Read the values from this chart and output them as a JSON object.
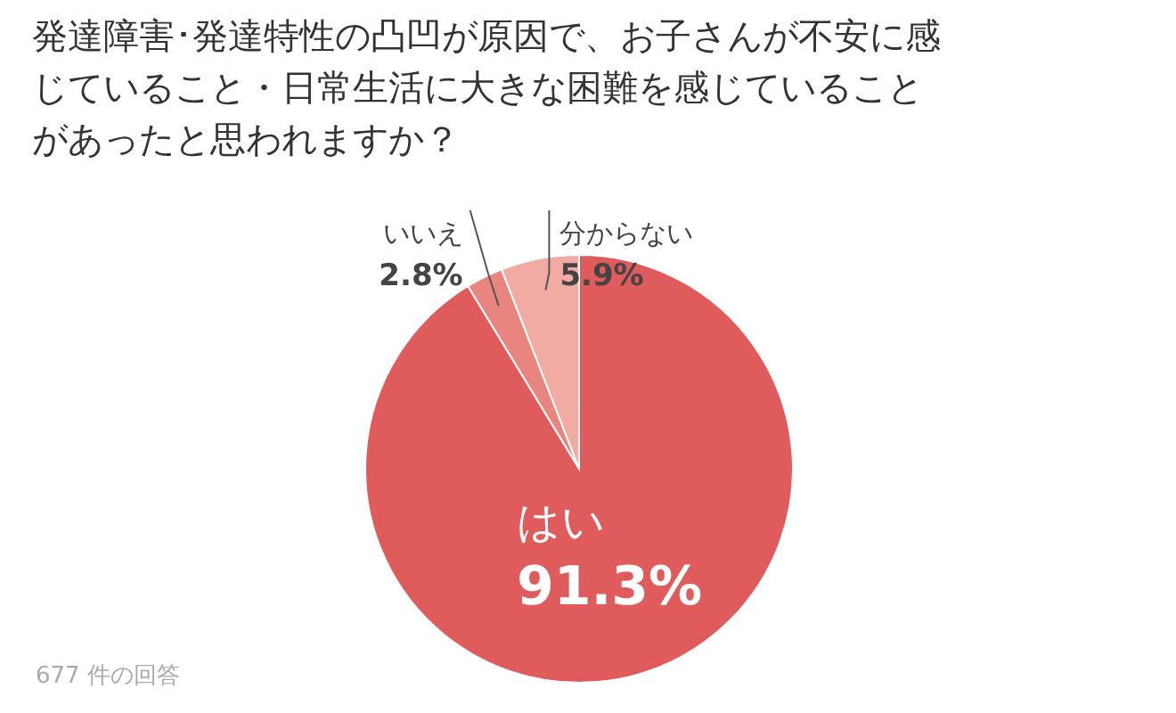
{
  "chart_data": {
    "type": "pie",
    "title": "発達障害･発達特性の凸凹が原因で、お子さんが不安に感じていること・日常生活に大きな困難を感じていることがあったと思われますか？",
    "categories": [
      "はい",
      "いいえ",
      "分からない"
    ],
    "values": [
      91.3,
      2.8,
      5.9
    ],
    "value_labels": [
      "91.3%",
      "2.8%",
      "5.9%"
    ],
    "colors": [
      "#e05c5c",
      "#e8857f",
      "#f2aba3"
    ],
    "annotations": [
      "677 件の回答"
    ]
  }
}
